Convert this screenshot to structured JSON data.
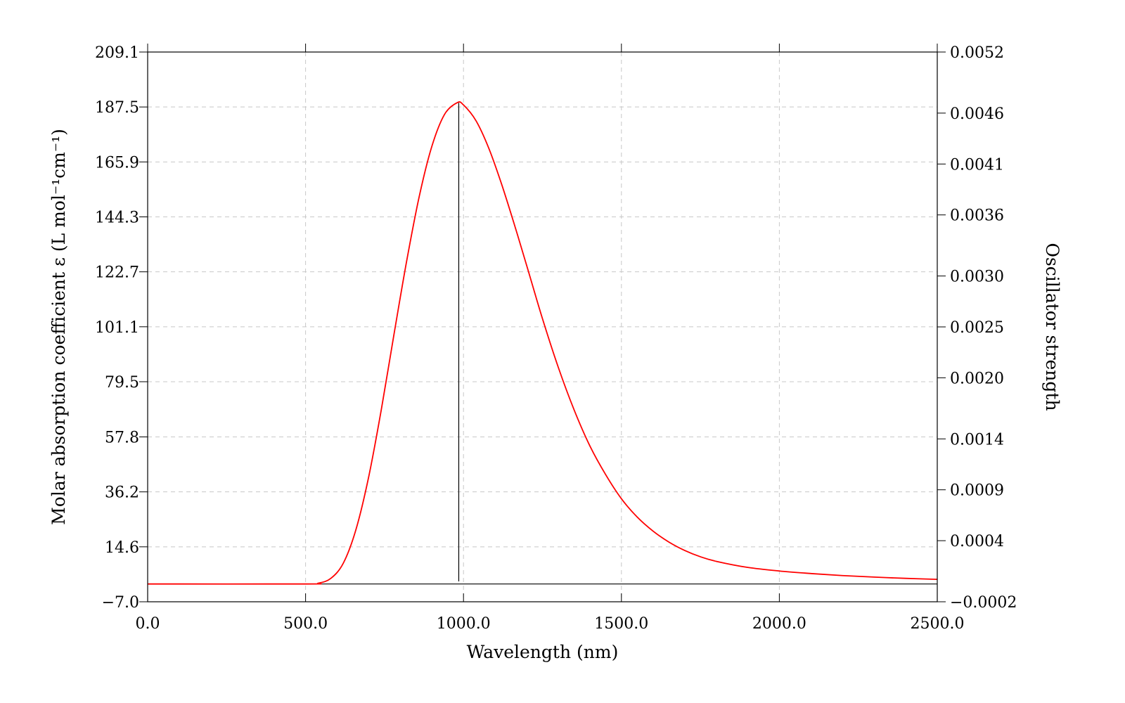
{
  "chart_data": {
    "type": "line",
    "title": "",
    "xlabel": "Wavelength (nm)",
    "ylabel": "Molar absorption coefficient  ε (L mol⁻¹cm⁻¹)",
    "y2label": "Oscillator strength",
    "xlim": [
      0,
      2500
    ],
    "ylim": [
      -7.0,
      209.1
    ],
    "y2lim": [
      -0.0002,
      0.0052
    ],
    "x_ticks": [
      "0.0",
      "500.0",
      "1000.0",
      "1500.0",
      "2000.0",
      "2500.0"
    ],
    "y_ticks": [
      "-7.0",
      "14.6",
      "36.2",
      "57.8",
      "79.5",
      "101.1",
      "122.7",
      "144.3",
      "165.9",
      "187.5",
      "209.1"
    ],
    "y2_ticks": [
      "-0.0002",
      "0.0004",
      "0.0009",
      "0.0014",
      "0.0020",
      "0.0025",
      "0.0030",
      "0.0036",
      "0.0041",
      "0.0046",
      "0.0052"
    ],
    "grid": true,
    "series": [
      {
        "color": "#ff0000",
        "x": [
          0,
          500,
          540,
          580,
          620,
          660,
          700,
          740,
          780,
          820,
          860,
          900,
          940,
          980,
          1000,
          1040,
          1080,
          1120,
          1160,
          1200,
          1250,
          1300,
          1350,
          1400,
          1450,
          1500,
          1550,
          1600,
          1650,
          1700,
          1750,
          1800,
          1900,
          2000,
          2100,
          2200,
          2300,
          2400,
          2500
        ],
        "y": [
          0.0,
          0.0,
          0.3,
          2.2,
          8.3,
          21.6,
          42.2,
          68.7,
          98.2,
          126.9,
          152.4,
          172.1,
          184.6,
          189.2,
          188.3,
          182.0,
          171.3,
          157.4,
          141.7,
          125.2,
          104.3,
          85.2,
          68.5,
          54.3,
          43.0,
          33.5,
          26.3,
          20.8,
          16.5,
          13.2,
          10.7,
          8.9,
          6.5,
          5.1,
          4.1,
          3.3,
          2.7,
          2.2,
          1.8
        ]
      }
    ],
    "sticks": [
      {
        "x": 985,
        "f": 0.0047
      }
    ],
    "baseline_y": 0.0
  }
}
